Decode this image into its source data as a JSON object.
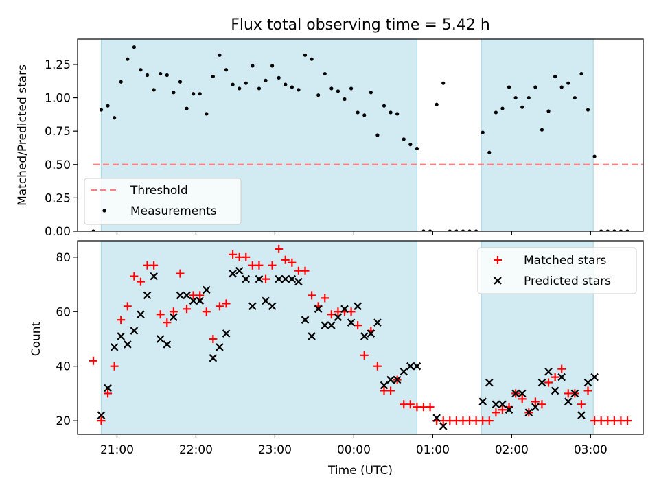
{
  "chart_data": [
    {
      "type": "scatter",
      "title": "Flux total observing time = 5.42 h",
      "xlabel": "",
      "ylabel": "Matched/Predicted stars",
      "xlim": [
        "20:30",
        "03:40"
      ],
      "ylim": [
        0,
        1.44
      ],
      "yticks": [
        0.0,
        0.25,
        0.5,
        0.75,
        1.0,
        1.25
      ],
      "ytick_labels": [
        "0.00",
        "0.25",
        "0.50",
        "0.75",
        "1.00",
        "1.25"
      ],
      "shaded_intervals": [
        [
          "20:48",
          "00:48"
        ],
        [
          "01:37",
          "03:02"
        ]
      ],
      "threshold": {
        "name": "Threshold",
        "value": 0.5,
        "x_range": [
          "20:42",
          "03:42"
        ],
        "color": "#ff7f7f"
      },
      "legend": {
        "position": "lower-left",
        "entries": [
          "Threshold",
          "Measurements"
        ]
      },
      "series": [
        {
          "name": "Measurements",
          "color": "#000000",
          "x": [
            "20:42",
            "20:48",
            "20:53",
            "20:58",
            "21:03",
            "21:08",
            "21:13",
            "21:18",
            "21:23",
            "21:28",
            "21:33",
            "21:38",
            "21:43",
            "21:48",
            "21:53",
            "21:58",
            "22:03",
            "22:08",
            "22:13",
            "22:18",
            "22:23",
            "22:28",
            "22:33",
            "22:38",
            "22:43",
            "22:48",
            "22:53",
            "22:58",
            "23:03",
            "23:08",
            "23:13",
            "23:18",
            "23:23",
            "23:28",
            "23:33",
            "23:38",
            "23:43",
            "23:48",
            "23:53",
            "23:58",
            "00:03",
            "00:08",
            "00:13",
            "00:18",
            "00:23",
            "00:28",
            "00:33",
            "00:38",
            "00:43",
            "00:48",
            "00:53",
            "00:58",
            "01:03",
            "01:08",
            "01:13",
            "01:18",
            "01:23",
            "01:28",
            "01:33",
            "01:38",
            "01:43",
            "01:48",
            "01:53",
            "01:58",
            "02:03",
            "02:08",
            "02:13",
            "02:18",
            "02:23",
            "02:28",
            "02:33",
            "02:38",
            "02:43",
            "02:48",
            "02:53",
            "02:58",
            "03:03",
            "03:08",
            "03:13",
            "03:18",
            "03:23",
            "03:28"
          ],
          "y": [
            0.0,
            0.91,
            0.94,
            0.85,
            1.12,
            1.29,
            1.38,
            1.21,
            1.17,
            1.06,
            1.18,
            1.17,
            1.04,
            1.12,
            0.92,
            1.03,
            1.03,
            0.88,
            1.16,
            1.32,
            1.21,
            1.1,
            1.07,
            1.11,
            1.24,
            1.07,
            1.13,
            1.24,
            1.15,
            1.1,
            1.08,
            1.06,
            1.32,
            1.29,
            1.02,
            1.18,
            1.07,
            1.05,
            0.99,
            1.07,
            0.89,
            0.87,
            1.04,
            0.72,
            0.94,
            0.89,
            0.88,
            0.69,
            0.65,
            0.62,
            0.0,
            0.0,
            0.95,
            1.11,
            0.0,
            0.0,
            0.0,
            0.0,
            0.0,
            0.74,
            0.59,
            0.89,
            0.92,
            1.08,
            1.0,
            0.93,
            1.0,
            1.08,
            0.76,
            0.9,
            1.16,
            1.08,
            1.11,
            1.0,
            1.18,
            0.91,
            0.56,
            0.0,
            0.0,
            0.0,
            0.0,
            0.0
          ]
        }
      ]
    },
    {
      "type": "scatter",
      "title": "",
      "xlabel": "Time (UTC)",
      "ylabel": "Count",
      "xlim": [
        "20:30",
        "03:40"
      ],
      "ylim": [
        15,
        86
      ],
      "yticks": [
        20,
        40,
        60,
        80
      ],
      "xticks": [
        "21:00",
        "22:00",
        "23:00",
        "00:00",
        "01:00",
        "02:00",
        "03:00"
      ],
      "shaded_intervals": [
        [
          "20:48",
          "00:48"
        ],
        [
          "01:37",
          "03:02"
        ]
      ],
      "legend": {
        "position": "top-right",
        "entries": [
          "Matched stars",
          "Predicted stars"
        ]
      },
      "series": [
        {
          "name": "Matched stars",
          "marker": "+",
          "color": "#ff0000",
          "x": [
            "20:42",
            "20:48",
            "20:53",
            "20:58",
            "21:03",
            "21:08",
            "21:13",
            "21:18",
            "21:23",
            "21:28",
            "21:33",
            "21:38",
            "21:43",
            "21:48",
            "21:53",
            "21:58",
            "22:03",
            "22:08",
            "22:13",
            "22:18",
            "22:23",
            "22:28",
            "22:33",
            "22:38",
            "22:43",
            "22:48",
            "22:53",
            "22:58",
            "23:03",
            "23:08",
            "23:13",
            "23:18",
            "23:23",
            "23:28",
            "23:33",
            "23:38",
            "23:43",
            "23:48",
            "23:53",
            "23:58",
            "00:03",
            "00:08",
            "00:13",
            "00:18",
            "00:23",
            "00:28",
            "00:33",
            "00:38",
            "00:43",
            "00:48",
            "00:53",
            "00:58",
            "01:03",
            "01:08",
            "01:13",
            "01:18",
            "01:23",
            "01:28",
            "01:33",
            "01:38",
            "01:43",
            "01:48",
            "01:53",
            "01:58",
            "02:03",
            "02:08",
            "02:13",
            "02:18",
            "02:23",
            "02:28",
            "02:33",
            "02:38",
            "02:43",
            "02:48",
            "02:53",
            "02:58",
            "03:03",
            "03:08",
            "03:13",
            "03:18",
            "03:23",
            "03:28"
          ],
          "y": [
            42,
            20,
            30,
            40,
            57,
            62,
            73,
            71,
            77,
            77,
            59,
            56,
            60,
            74,
            61,
            66,
            66,
            60,
            50,
            62,
            63,
            81,
            80,
            80,
            77,
            77,
            72,
            77,
            83,
            79,
            78,
            75,
            75,
            66,
            62,
            65,
            59,
            60,
            60,
            60,
            55,
            44,
            53,
            40,
            31,
            31,
            35,
            26,
            26,
            25,
            25,
            25,
            20,
            20,
            20,
            20,
            20,
            20,
            20,
            20,
            20,
            23,
            24,
            25,
            30,
            28,
            23,
            27,
            26,
            34,
            36,
            39,
            30,
            30,
            26,
            31,
            20,
            20,
            20,
            20,
            20,
            20
          ]
        },
        {
          "name": "Predicted stars",
          "marker": "x",
          "color": "#000000",
          "x": [
            "20:48",
            "20:53",
            "20:58",
            "21:03",
            "21:08",
            "21:13",
            "21:18",
            "21:23",
            "21:28",
            "21:33",
            "21:38",
            "21:43",
            "21:48",
            "21:53",
            "21:58",
            "22:03",
            "22:08",
            "22:13",
            "22:18",
            "22:23",
            "22:28",
            "22:33",
            "22:38",
            "22:43",
            "22:48",
            "22:53",
            "22:58",
            "23:03",
            "23:08",
            "23:13",
            "23:18",
            "23:23",
            "23:28",
            "23:33",
            "23:38",
            "23:43",
            "23:48",
            "23:53",
            "23:58",
            "00:03",
            "00:08",
            "00:13",
            "00:18",
            "00:23",
            "00:28",
            "00:33",
            "00:38",
            "00:43",
            "00:48",
            "01:03",
            "01:08",
            "01:38",
            "01:43",
            "01:48",
            "01:53",
            "01:58",
            "02:03",
            "02:08",
            "02:13",
            "02:18",
            "02:23",
            "02:28",
            "02:33",
            "02:38",
            "02:43",
            "02:48",
            "02:53",
            "02:58",
            "03:03"
          ],
          "y": [
            22,
            32,
            47,
            51,
            48,
            53,
            59,
            66,
            73,
            50,
            48,
            58,
            66,
            66,
            64,
            64,
            68,
            43,
            47,
            52,
            74,
            75,
            72,
            62,
            72,
            64,
            62,
            72,
            72,
            72,
            71,
            57,
            51,
            61,
            55,
            55,
            58,
            61,
            56,
            62,
            51,
            52,
            56,
            33,
            35,
            35,
            38,
            40,
            40,
            21,
            18,
            27,
            34,
            26,
            26,
            24,
            30,
            30,
            23,
            25,
            34,
            38,
            31,
            36,
            27,
            30,
            22,
            34,
            36
          ]
        }
      ]
    }
  ]
}
